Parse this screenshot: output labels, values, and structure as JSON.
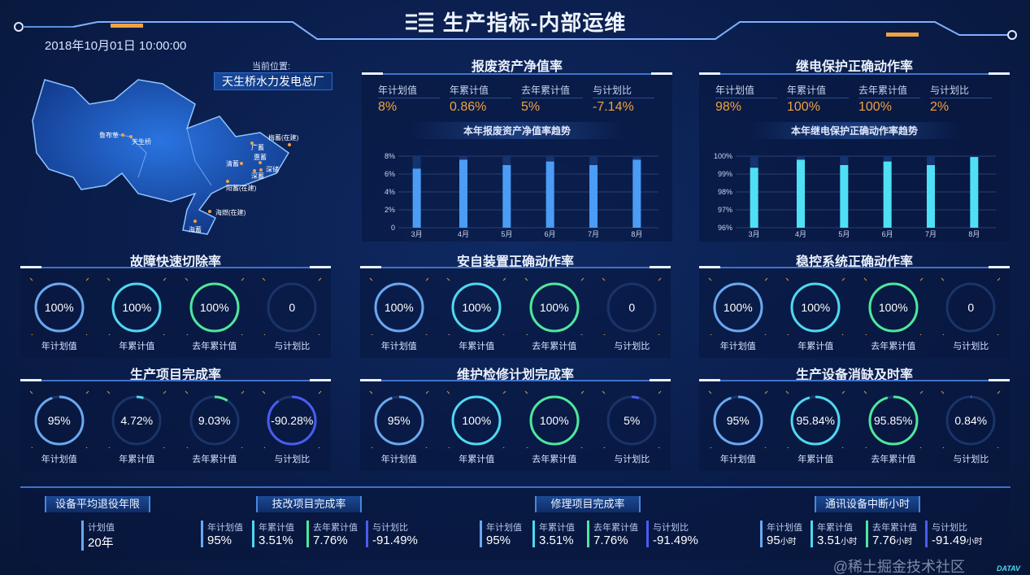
{
  "header": {
    "title": "生产指标-内部运维",
    "datetime": "2018年10月01日  10:00:00"
  },
  "location": {
    "label": "当前位置:",
    "value": "天生桥水力发电总厂"
  },
  "map": {
    "places": [
      "鲁布革",
      "天生桥",
      "广蓄",
      "惠蓄",
      "清蓄",
      "深蓄",
      "深储",
      "梅蓄(在建)",
      "阳蓄(在建)",
      "海燃(在建)",
      "海蓄"
    ]
  },
  "colors": {
    "plan": "#6aa8f0",
    "cum": "#4fd8f0",
    "lastyear": "#4ee89a",
    "ratio": "#4a5cf0",
    "kpi": "#f0a242"
  },
  "charts": [
    {
      "title": "报废资产净值率",
      "kpis": [
        {
          "label": "年计划值",
          "value": "8%"
        },
        {
          "label": "年累计值",
          "value": "0.86%"
        },
        {
          "label": "去年累计值",
          "value": "5%"
        },
        {
          "label": "与计划比",
          "value": "-7.14%"
        }
      ],
      "chart_data": {
        "type": "bar",
        "title": "本年报废资产净值率趋势",
        "categories": [
          "3月",
          "4月",
          "5月",
          "6月",
          "7月",
          "8月"
        ],
        "values": [
          6.6,
          7.6,
          7.0,
          7.4,
          7.0,
          7.6
        ],
        "ylim": [
          0,
          8
        ],
        "yticks": [
          "0",
          "2%",
          "4%",
          "6%",
          "8%"
        ],
        "color": "#4b9cf5"
      }
    },
    {
      "title": "继电保护正确动作率",
      "kpis": [
        {
          "label": "年计划值",
          "value": "98%"
        },
        {
          "label": "年累计值",
          "value": "100%"
        },
        {
          "label": "去年累计值",
          "value": "100%"
        },
        {
          "label": "与计划比",
          "value": "2%"
        }
      ],
      "chart_data": {
        "type": "bar",
        "title": "本年继电保护正确动作率趋势",
        "categories": [
          "3月",
          "4月",
          "5月",
          "6月",
          "7月",
          "8月"
        ],
        "values": [
          99.35,
          99.8,
          99.5,
          99.7,
          99.5,
          99.95
        ],
        "ylim": [
          96,
          100
        ],
        "yticks": [
          "96%",
          "97%",
          "98%",
          "99%",
          "100%"
        ],
        "color": "#4fe0f5"
      }
    }
  ],
  "ring_panels": [
    {
      "title": "故障快速切除率",
      "items": [
        {
          "label": "年计划值",
          "value": "100%",
          "fill": 100
        },
        {
          "label": "年累计值",
          "value": "100%",
          "fill": 100
        },
        {
          "label": "去年累计值",
          "value": "100%",
          "fill": 100
        },
        {
          "label": "与计划比",
          "value": "0",
          "fill": 0
        }
      ]
    },
    {
      "title": "安自装置正确动作率",
      "items": [
        {
          "label": "年计划值",
          "value": "100%",
          "fill": 100
        },
        {
          "label": "年累计值",
          "value": "100%",
          "fill": 100
        },
        {
          "label": "去年累计值",
          "value": "100%",
          "fill": 100
        },
        {
          "label": "与计划比",
          "value": "0",
          "fill": 0
        }
      ]
    },
    {
      "title": "稳控系统正确动作率",
      "items": [
        {
          "label": "年计划值",
          "value": "100%",
          "fill": 100
        },
        {
          "label": "年累计值",
          "value": "100%",
          "fill": 100
        },
        {
          "label": "去年累计值",
          "value": "100%",
          "fill": 100
        },
        {
          "label": "与计划比",
          "value": "0",
          "fill": 0
        }
      ]
    },
    {
      "title": "生产项目完成率",
      "items": [
        {
          "label": "年计划值",
          "value": "95%",
          "fill": 95
        },
        {
          "label": "年累计值",
          "value": "4.72%",
          "fill": 4.72
        },
        {
          "label": "去年累计值",
          "value": "9.03%",
          "fill": 9.03
        },
        {
          "label": "与计划比",
          "value": "-90.28%",
          "fill": 90.28
        }
      ]
    },
    {
      "title": "维护检修计划完成率",
      "items": [
        {
          "label": "年计划值",
          "value": "95%",
          "fill": 95
        },
        {
          "label": "年累计值",
          "value": "100%",
          "fill": 100
        },
        {
          "label": "去年累计值",
          "value": "100%",
          "fill": 100
        },
        {
          "label": "与计划比",
          "value": "5%",
          "fill": 5
        }
      ]
    },
    {
      "title": "生产设备消缺及时率",
      "items": [
        {
          "label": "年计划值",
          "value": "95%",
          "fill": 95
        },
        {
          "label": "年累计值",
          "value": "95.84%",
          "fill": 95.84
        },
        {
          "label": "去年累计值",
          "value": "95.85%",
          "fill": 95.85
        },
        {
          "label": "与计划比",
          "value": "0.84%",
          "fill": 0.84
        }
      ]
    }
  ],
  "bottom": [
    {
      "title": "设备平均退役年限",
      "items": [
        {
          "label": "计划值",
          "value": "20年",
          "unit": ""
        }
      ]
    },
    {
      "title": "技改项目完成率",
      "items": [
        {
          "label": "年计划值",
          "value": "95%",
          "unit": ""
        },
        {
          "label": "年累计值",
          "value": "3.51%",
          "unit": ""
        },
        {
          "label": "去年累计值",
          "value": "7.76%",
          "unit": ""
        },
        {
          "label": "与计划比",
          "value": "-91.49%",
          "unit": ""
        }
      ]
    },
    {
      "title": "修理项目完成率",
      "items": [
        {
          "label": "年计划值",
          "value": "95%",
          "unit": ""
        },
        {
          "label": "年累计值",
          "value": "3.51%",
          "unit": ""
        },
        {
          "label": "去年累计值",
          "value": "7.76%",
          "unit": ""
        },
        {
          "label": "与计划比",
          "value": "-91.49%",
          "unit": ""
        }
      ]
    },
    {
      "title": "通讯设备中断小时",
      "items": [
        {
          "label": "年计划值",
          "value": "95",
          "unit": "小时"
        },
        {
          "label": "年累计值",
          "value": "3.51",
          "unit": "小时"
        },
        {
          "label": "去年累计值",
          "value": "7.76",
          "unit": "小时"
        },
        {
          "label": "与计划比",
          "value": "-91.49",
          "unit": "小时"
        }
      ]
    }
  ],
  "watermark": "@稀土掘金技术社区",
  "brand": "DATAV"
}
